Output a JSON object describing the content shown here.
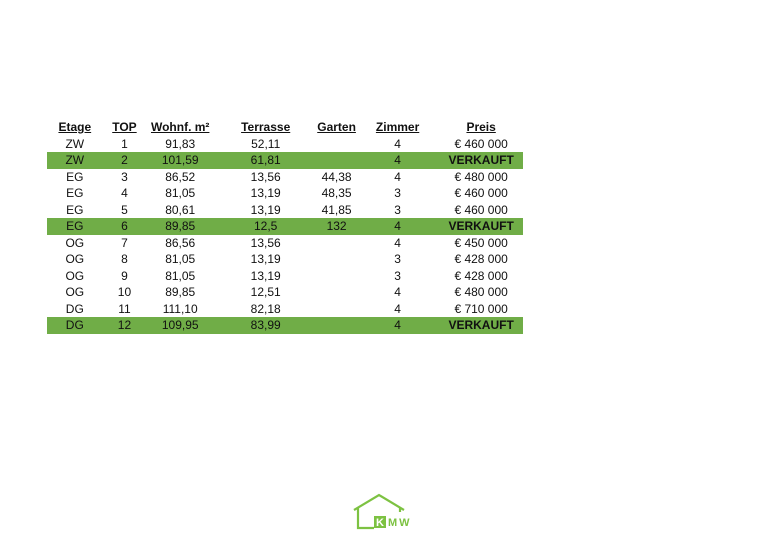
{
  "table": {
    "headers": [
      "Etage",
      "TOP",
      "Wohnf. m²",
      "Terrasse",
      "Garten",
      "Zimmer",
      "Preis"
    ],
    "rows": [
      {
        "etage": "ZW",
        "top": "1",
        "wohnflaeche": "91,83",
        "terrasse": "52,11",
        "garten": "",
        "zimmer": "4",
        "preis": "€ 460 000",
        "sold": false
      },
      {
        "etage": "ZW",
        "top": "2",
        "wohnflaeche": "101,59",
        "terrasse": "61,81",
        "garten": "",
        "zimmer": "4",
        "preis": "VERKAUFT",
        "sold": true
      },
      {
        "etage": "EG",
        "top": "3",
        "wohnflaeche": "86,52",
        "terrasse": "13,56",
        "garten": "44,38",
        "zimmer": "4",
        "preis": "€ 480 000",
        "sold": false
      },
      {
        "etage": "EG",
        "top": "4",
        "wohnflaeche": "81,05",
        "terrasse": "13,19",
        "garten": "48,35",
        "zimmer": "3",
        "preis": "€ 460 000",
        "sold": false
      },
      {
        "etage": "EG",
        "top": "5",
        "wohnflaeche": "80,61",
        "terrasse": "13,19",
        "garten": "41,85",
        "zimmer": "3",
        "preis": "€ 460 000",
        "sold": false
      },
      {
        "etage": "EG",
        "top": "6",
        "wohnflaeche": "89,85",
        "terrasse": "12,5",
        "garten": "132",
        "zimmer": "4",
        "preis": "VERKAUFT",
        "sold": true
      },
      {
        "etage": "OG",
        "top": "7",
        "wohnflaeche": "86,56",
        "terrasse": "13,56",
        "garten": "",
        "zimmer": "4",
        "preis": "€ 450 000",
        "sold": false
      },
      {
        "etage": "OG",
        "top": "8",
        "wohnflaeche": "81,05",
        "terrasse": "13,19",
        "garten": "",
        "zimmer": "3",
        "preis": "€ 428 000",
        "sold": false
      },
      {
        "etage": "OG",
        "top": "9",
        "wohnflaeche": "81,05",
        "terrasse": "13,19",
        "garten": "",
        "zimmer": "3",
        "preis": "€ 428 000",
        "sold": false
      },
      {
        "etage": "OG",
        "top": "10",
        "wohnflaeche": "89,85",
        "terrasse": "12,51",
        "garten": "",
        "zimmer": "4",
        "preis": "€ 480 000",
        "sold": false
      },
      {
        "etage": "DG",
        "top": "11",
        "wohnflaeche": "111,10",
        "terrasse": "82,18",
        "garten": "",
        "zimmer": "4",
        "preis": "€ 710 000",
        "sold": false
      },
      {
        "etage": "DG",
        "top": "12",
        "wohnflaeche": "109,95",
        "terrasse": "83,99",
        "garten": "",
        "zimmer": "4",
        "preis": "VERKAUFT",
        "sold": true
      }
    ]
  },
  "colors": {
    "sold_highlight": "#70ad47",
    "logo_green": "#7dc242"
  },
  "logo": {
    "text": "KMW",
    "icon": "house-logo-icon"
  }
}
